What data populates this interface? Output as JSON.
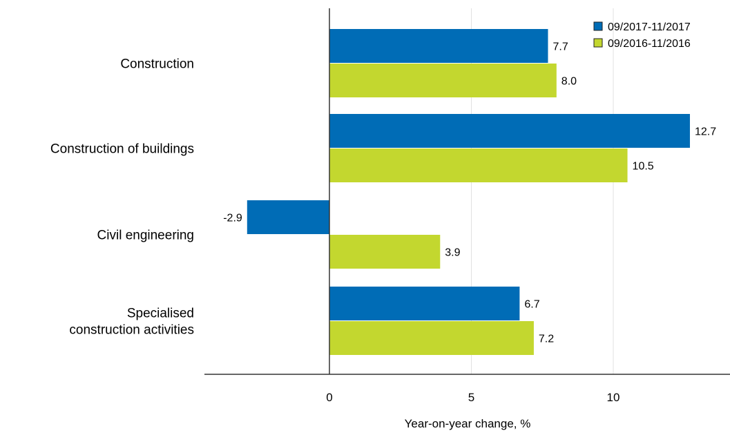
{
  "chart_data": {
    "type": "bar",
    "orientation": "horizontal",
    "categories": [
      [
        "Construction"
      ],
      [
        "Construction of buildings"
      ],
      [
        "Civil engineering"
      ],
      [
        "Specialised ",
        "construction activities"
      ]
    ],
    "series": [
      {
        "name": "09/2017-11/2017",
        "color": "#006cb6",
        "values": [
          7.7,
          12.7,
          -2.9,
          6.7
        ],
        "labels": [
          "7.7",
          "12.7",
          "-2.9",
          "6.7"
        ]
      },
      {
        "name": "09/2016-11/2016",
        "color": "#c3d72f",
        "values": [
          8.0,
          10.5,
          3.9,
          7.2
        ],
        "labels": [
          "8.0",
          "10.5",
          "3.9",
          "7.2"
        ]
      }
    ],
    "xlabel": "Year-on-year change, %",
    "xlim": [
      -4.4,
      14
    ],
    "xticks": [
      0,
      5,
      10
    ],
    "xtick_labels": [
      "0",
      "5",
      "10"
    ],
    "grid": "vertical",
    "legend": "top-right"
  }
}
